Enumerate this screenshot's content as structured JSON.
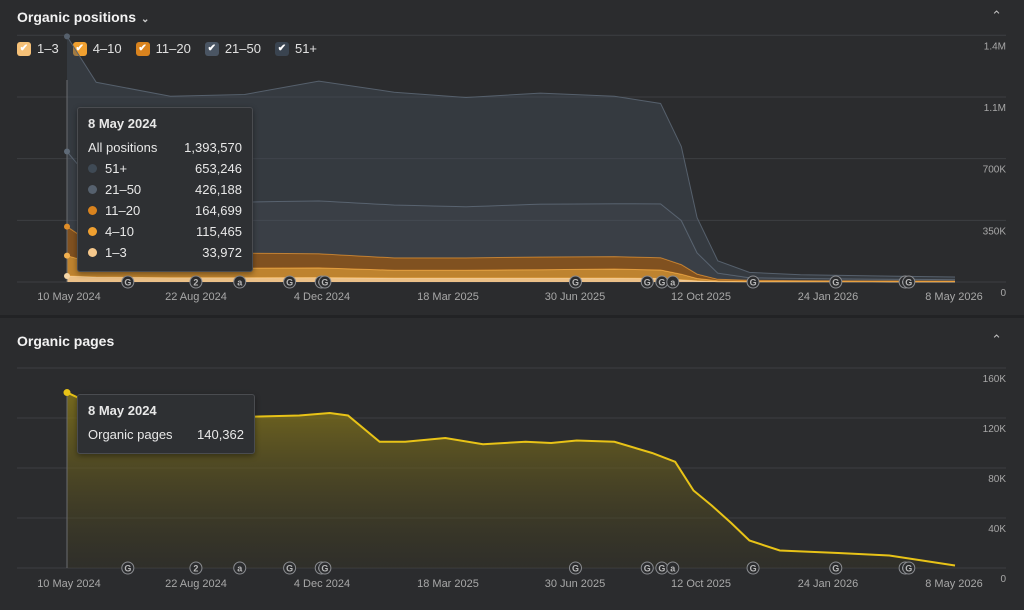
{
  "panel1": {
    "title": "Organic positions",
    "legend": [
      {
        "label": "1–3",
        "color": "#f6c178",
        "checked": true
      },
      {
        "label": "4–10",
        "color": "#f0a030",
        "checked": true
      },
      {
        "label": "11–20",
        "color": "#d9831e",
        "checked": true
      },
      {
        "label": "21–50",
        "color": "#4a5563",
        "checked": true
      },
      {
        "label": "51+",
        "color": "#3a4450",
        "checked": true
      }
    ],
    "tooltip": {
      "date": "8 May 2024",
      "total_label": "All positions",
      "total_value": "1,393,570",
      "rows": [
        {
          "label": "51+",
          "value": "653,246",
          "color": "#3f4a55"
        },
        {
          "label": "21–50",
          "value": "426,188",
          "color": "#56616e"
        },
        {
          "label": "11–20",
          "value": "164,699",
          "color": "#d9831e"
        },
        {
          "label": "4–10",
          "value": "115,465",
          "color": "#f0a030"
        },
        {
          "label": "1–3",
          "value": "33,972",
          "color": "#f6c88c"
        }
      ]
    }
  },
  "panel2": {
    "title": "Organic pages",
    "tooltip": {
      "date": "8 May 2024",
      "label": "Organic pages",
      "value": "140,362"
    }
  },
  "x_axis_labels": [
    "10 May 2024",
    "22 Aug 2024",
    "4 Dec 2024",
    "18 Mar 2025",
    "30 Jun 2025",
    "12 Oct 2025",
    "24 Jan 2026",
    "8 May 2026"
  ],
  "annotations": [
    {
      "glyph": "G",
      "date": "2024-06-27"
    },
    {
      "glyph": "2",
      "date": "2024-08-22"
    },
    {
      "glyph": "a",
      "date": "2024-09-27"
    },
    {
      "glyph": "G",
      "date": "2024-11-07"
    },
    {
      "glyph": "G",
      "date": "2024-12-03"
    },
    {
      "glyph": "G",
      "date": "2024-12-06"
    },
    {
      "glyph": "G",
      "date": "2025-06-30"
    },
    {
      "glyph": "G",
      "date": "2025-08-28"
    },
    {
      "glyph": "G",
      "date": "2025-09-09"
    },
    {
      "glyph": "a",
      "date": "2025-09-18"
    },
    {
      "glyph": "G",
      "date": "2025-11-23"
    },
    {
      "glyph": "G",
      "date": "2026-01-30"
    },
    {
      "glyph": "G",
      "date": "2026-03-28"
    },
    {
      "glyph": "G",
      "date": "2026-03-31"
    }
  ],
  "chart_data": [
    {
      "type": "area",
      "stacked": true,
      "title": "Organic positions",
      "x_range": [
        "2024-05-08",
        "2026-05-08"
      ],
      "ylim": [
        0,
        1600000
      ],
      "y_ticks": [
        "1.4M",
        "1.1M",
        "700K",
        "350K",
        "0"
      ],
      "y_tick_values": [
        1400000,
        1050000,
        700000,
        350000,
        0
      ],
      "x": [
        "2024-05-08",
        "2024-06-01",
        "2024-08-01",
        "2024-10-01",
        "2024-12-01",
        "2025-02-01",
        "2025-04-01",
        "2025-06-01",
        "2025-08-01",
        "2025-09-08",
        "2025-09-25",
        "2025-10-08",
        "2025-10-25",
        "2025-11-20",
        "2026-01-01",
        "2026-03-01",
        "2026-05-08"
      ],
      "series": [
        {
          "name": "1–3",
          "color": "#f6c88c",
          "values": [
            33972,
            28000,
            24000,
            24000,
            25000,
            22000,
            22000,
            22000,
            22000,
            20000,
            12000,
            6000,
            2500,
            1500,
            1200,
            1000,
            800
          ]
        },
        {
          "name": "4–10",
          "color": "#f0a030",
          "values": [
            115465,
            75000,
            60000,
            55000,
            55000,
            45000,
            45000,
            48000,
            52000,
            48000,
            32000,
            14000,
            5000,
            3000,
            2500,
            2000,
            1800
          ]
        },
        {
          "name": "11–20",
          "color": "#d9831e",
          "values": [
            164699,
            100000,
            90000,
            85000,
            80000,
            70000,
            70000,
            72000,
            70000,
            70000,
            55000,
            25000,
            8000,
            5000,
            4000,
            3500,
            3000
          ]
        },
        {
          "name": "21–50",
          "color": "#56616e",
          "values": [
            426188,
            340000,
            300000,
            290000,
            300000,
            300000,
            290000,
            300000,
            300000,
            305000,
            250000,
            120000,
            35000,
            15000,
            12000,
            10000,
            8000
          ]
        },
        {
          "name": "51+",
          "color": "#3f4a55",
          "values": [
            653246,
            590000,
            580000,
            610000,
            680000,
            640000,
            620000,
            630000,
            610000,
            570000,
            420000,
            200000,
            70000,
            30000,
            22000,
            18000,
            15000
          ]
        }
      ]
    },
    {
      "type": "area",
      "title": "Organic pages",
      "x_range": [
        "2024-05-08",
        "2026-05-08"
      ],
      "ylim": [
        0,
        180000
      ],
      "y_ticks": [
        "160K",
        "120K",
        "80K",
        "40K",
        "0"
      ],
      "y_tick_values": [
        160000,
        120000,
        80000,
        40000,
        0
      ],
      "series": [
        {
          "name": "Organic pages",
          "color": "#e8c317",
          "x": [
            "2024-05-08",
            "2024-05-20",
            "2024-06-15",
            "2024-08-01",
            "2024-10-01",
            "2024-11-15",
            "2024-12-10",
            "2024-12-25",
            "2025-01-20",
            "2025-02-10",
            "2025-03-15",
            "2025-04-15",
            "2025-05-20",
            "2025-06-10",
            "2025-07-01",
            "2025-08-01",
            "2025-09-01",
            "2025-09-20",
            "2025-10-05",
            "2025-10-20",
            "2025-11-05",
            "2025-11-20",
            "2025-12-15",
            "2026-02-01",
            "2026-03-15",
            "2026-05-08"
          ],
          "values": [
            140362,
            135000,
            125000,
            122000,
            121000,
            122000,
            124000,
            122000,
            101000,
            101000,
            104000,
            99000,
            101000,
            100000,
            102000,
            101000,
            92000,
            85000,
            62000,
            50000,
            36000,
            22000,
            14000,
            12000,
            10000,
            2000
          ]
        }
      ]
    }
  ]
}
